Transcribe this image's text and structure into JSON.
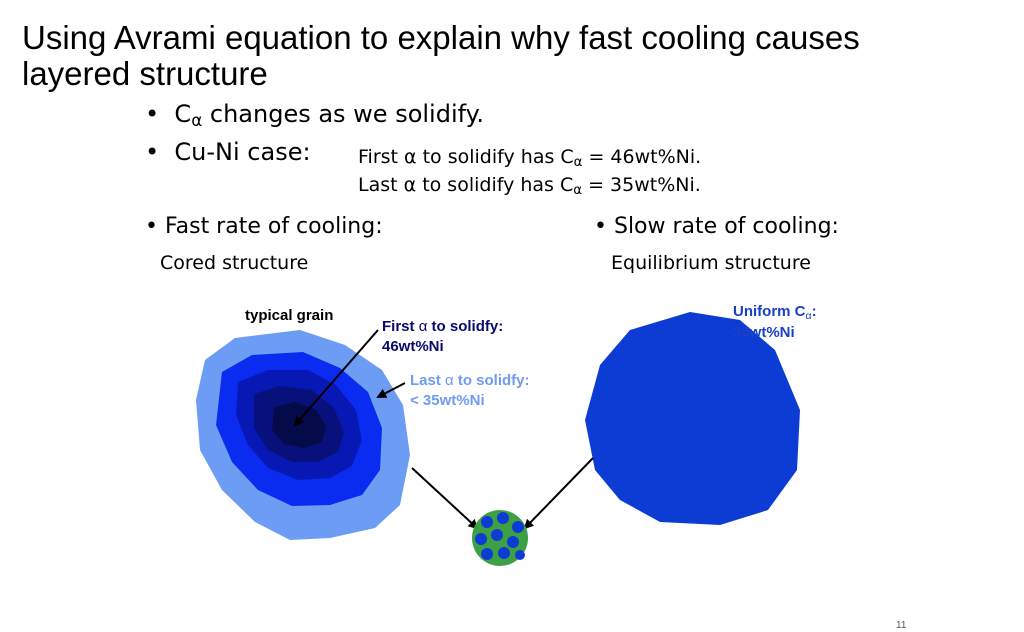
{
  "slide": {
    "title_line1": "Using Avrami equation to explain why fast cooling causes",
    "title_line2": "layered structure",
    "bullet1": {
      "symbol": "C",
      "subscript": "α",
      "text": " changes as we solidify."
    },
    "bullet2": {
      "label": "Cu-Ni case:",
      "line1_pre": "First ",
      "line1_alpha": "α",
      "line1_mid": " to solidify has C",
      "line1_sub": "α",
      "line1_post": " = 46wt%Ni.",
      "line2_pre": "Last  ",
      "line2_alpha": "α",
      "line2_mid": " to solidify has C",
      "line2_sub": "α",
      "line2_post": " = 35wt%Ni."
    },
    "fast": {
      "heading": "Fast rate of cooling:",
      "sub": "Cored structure"
    },
    "slow": {
      "heading": "Slow rate of cooling:",
      "sub": "Equilibrium structure"
    },
    "labels": {
      "typical_grain": "typical grain",
      "first_pre": "First ",
      "first_alpha": "α",
      "first_post": " to solidfy:",
      "first_value": "46wt%Ni",
      "last_pre": "Last ",
      "last_alpha": "α",
      "last_post": "  to solidfy:",
      "last_value": "< 35wt%Ni",
      "uniform_pre": "Uniform C",
      "uniform_sub": "α",
      "uniform_post": ":",
      "uniform_value": "35wt%Ni"
    },
    "slide_number": "11"
  },
  "colors": {
    "navy_text": "#0a0a6e",
    "royal_text": "#1840c8",
    "light_text": "#6f9cf0",
    "ring_outer": "#6c9cf4",
    "ring_2": "#0a2cf0",
    "ring_3": "#0818b4",
    "ring_4": "#08107c",
    "ring_5": "#050a48",
    "uniform_grain": "#0c3cd4",
    "green": "#3ea044"
  }
}
